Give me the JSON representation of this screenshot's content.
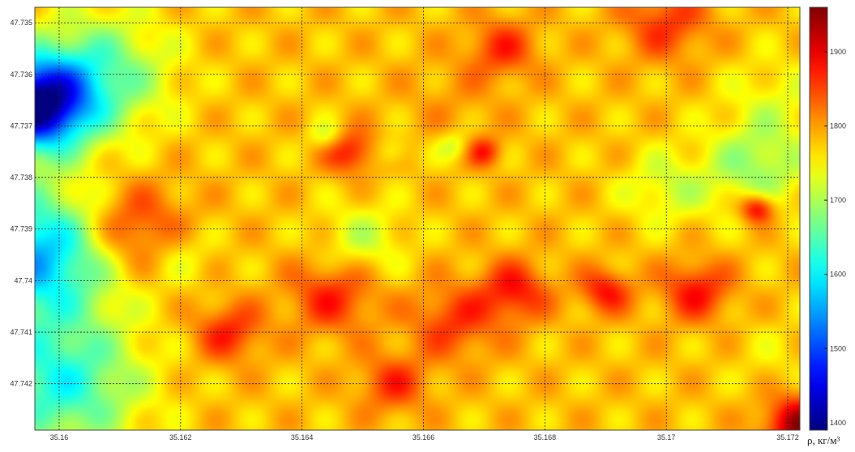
{
  "chart_data": {
    "type": "heatmap",
    "x_ticks": [
      "35.16",
      "35.162",
      "35.164",
      "35.166",
      "35.168",
      "35.17",
      "35.172"
    ],
    "x_tick_values": [
      35.16,
      35.162,
      35.164,
      35.166,
      35.168,
      35.17,
      35.172
    ],
    "xlim": [
      35.1596,
      35.1722
    ],
    "y_ticks": [
      "47.735",
      "47.736",
      "47.737",
      "47.738",
      "47.739",
      "47.74",
      "47.741",
      "47.742"
    ],
    "y_tick_values": [
      47.735,
      47.736,
      47.737,
      47.738,
      47.739,
      47.74,
      47.741,
      47.742
    ],
    "ylim": [
      47.7347,
      47.7429
    ],
    "y_direction": "downward",
    "grid": true,
    "colorbar": {
      "label": "ρ, кг/м³",
      "ticks": [
        "1400",
        "1500",
        "1600",
        "1700",
        "1800",
        "1900"
      ],
      "tick_values": [
        1400,
        1500,
        1600,
        1700,
        1800,
        1900
      ],
      "range": [
        1390,
        1960
      ],
      "colormap": "jet"
    },
    "base_value": 1780,
    "features": [
      {
        "x": 35.1596,
        "y": 47.7366,
        "value": 1400,
        "spread": 0.0006
      },
      {
        "x": 35.1596,
        "y": 47.7395,
        "value": 1560,
        "spread": 0.0009
      },
      {
        "x": 35.16,
        "y": 47.742,
        "value": 1620,
        "spread": 0.0009
      },
      {
        "x": 35.1606,
        "y": 47.736,
        "value": 1650,
        "spread": 0.0008
      },
      {
        "x": 35.1612,
        "y": 47.739,
        "value": 1880,
        "spread": 0.0006
      },
      {
        "x": 35.1635,
        "y": 47.7355,
        "value": 1780,
        "spread": 0.0007
      },
      {
        "x": 35.1648,
        "y": 47.7375,
        "value": 1880,
        "spread": 0.0003
      },
      {
        "x": 35.1644,
        "y": 47.7372,
        "value": 1720,
        "spread": 0.0002
      },
      {
        "x": 35.1655,
        "y": 47.7375,
        "value": 1730,
        "spread": 0.0002
      },
      {
        "x": 35.1665,
        "y": 47.7374,
        "value": 1720,
        "spread": 0.0002
      },
      {
        "x": 35.167,
        "y": 47.7375,
        "value": 1870,
        "spread": 0.0002
      },
      {
        "x": 35.165,
        "y": 47.7392,
        "value": 1720,
        "spread": 0.0005
      },
      {
        "x": 35.1665,
        "y": 47.7365,
        "value": 1800,
        "spread": 0.0006
      },
      {
        "x": 35.1673,
        "y": 47.7355,
        "value": 1860,
        "spread": 0.0004
      },
      {
        "x": 35.1645,
        "y": 47.7403,
        "value": 1870,
        "spread": 0.0005
      },
      {
        "x": 35.1665,
        "y": 47.7408,
        "value": 1860,
        "spread": 0.0005
      },
      {
        "x": 35.1675,
        "y": 47.7402,
        "value": 1880,
        "spread": 0.0004
      },
      {
        "x": 35.169,
        "y": 47.7402,
        "value": 1880,
        "spread": 0.0003
      },
      {
        "x": 35.17,
        "y": 47.7382,
        "value": 1720,
        "spread": 0.0005
      },
      {
        "x": 35.1715,
        "y": 47.7378,
        "value": 1690,
        "spread": 0.0006
      },
      {
        "x": 35.1718,
        "y": 47.7365,
        "value": 1740,
        "spread": 0.0006
      },
      {
        "x": 35.1715,
        "y": 47.7386,
        "value": 1920,
        "spread": 0.0002
      },
      {
        "x": 35.1705,
        "y": 47.7402,
        "value": 1880,
        "spread": 0.0004
      },
      {
        "x": 35.1718,
        "y": 47.7415,
        "value": 1760,
        "spread": 0.0005
      },
      {
        "x": 35.1722,
        "y": 47.7428,
        "value": 1940,
        "spread": 0.0004
      },
      {
        "x": 35.1628,
        "y": 47.741,
        "value": 1870,
        "spread": 0.0004
      },
      {
        "x": 35.162,
        "y": 47.7395,
        "value": 1740,
        "spread": 0.0004
      },
      {
        "x": 35.1655,
        "y": 47.742,
        "value": 1860,
        "spread": 0.0004
      },
      {
        "x": 35.17,
        "y": 47.735,
        "value": 1860,
        "spread": 0.0005
      }
    ]
  }
}
